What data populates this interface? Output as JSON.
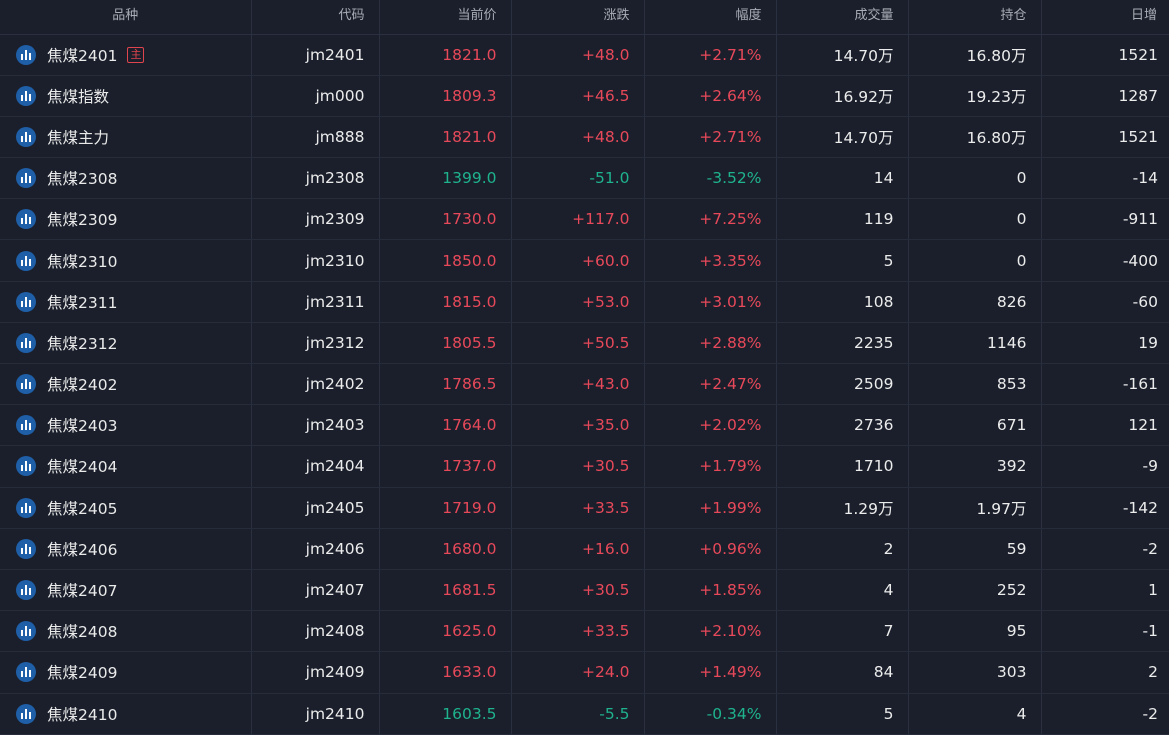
{
  "headers": [
    "品种",
    "代码",
    "当前价",
    "涨跌",
    "幅度",
    "成交量",
    "持仓",
    "日增"
  ],
  "main_badge": "主",
  "icon": "bar-chart-icon",
  "colors": {
    "up": "#e8495a",
    "down": "#1fb38d",
    "icon_bg": "#1f5fa8",
    "background": "#1a1f2b"
  },
  "rows": [
    {
      "name": "焦煤2401",
      "code": "jm2401",
      "price": "1821.0",
      "change": "+48.0",
      "pct": "+2.71%",
      "volume": "14.70万",
      "oi": "16.80万",
      "daily": "1521",
      "dir": "up",
      "main": true
    },
    {
      "name": "焦煤指数",
      "code": "jm000",
      "price": "1809.3",
      "change": "+46.5",
      "pct": "+2.64%",
      "volume": "16.92万",
      "oi": "19.23万",
      "daily": "1287",
      "dir": "up",
      "main": false
    },
    {
      "name": "焦煤主力",
      "code": "jm888",
      "price": "1821.0",
      "change": "+48.0",
      "pct": "+2.71%",
      "volume": "14.70万",
      "oi": "16.80万",
      "daily": "1521",
      "dir": "up",
      "main": false
    },
    {
      "name": "焦煤2308",
      "code": "jm2308",
      "price": "1399.0",
      "change": "-51.0",
      "pct": "-3.52%",
      "volume": "14",
      "oi": "0",
      "daily": "-14",
      "dir": "down",
      "main": false
    },
    {
      "name": "焦煤2309",
      "code": "jm2309",
      "price": "1730.0",
      "change": "+117.0",
      "pct": "+7.25%",
      "volume": "119",
      "oi": "0",
      "daily": "-911",
      "dir": "up",
      "main": false
    },
    {
      "name": "焦煤2310",
      "code": "jm2310",
      "price": "1850.0",
      "change": "+60.0",
      "pct": "+3.35%",
      "volume": "5",
      "oi": "0",
      "daily": "-400",
      "dir": "up",
      "main": false
    },
    {
      "name": "焦煤2311",
      "code": "jm2311",
      "price": "1815.0",
      "change": "+53.0",
      "pct": "+3.01%",
      "volume": "108",
      "oi": "826",
      "daily": "-60",
      "dir": "up",
      "main": false
    },
    {
      "name": "焦煤2312",
      "code": "jm2312",
      "price": "1805.5",
      "change": "+50.5",
      "pct": "+2.88%",
      "volume": "2235",
      "oi": "1146",
      "daily": "19",
      "dir": "up",
      "main": false
    },
    {
      "name": "焦煤2402",
      "code": "jm2402",
      "price": "1786.5",
      "change": "+43.0",
      "pct": "+2.47%",
      "volume": "2509",
      "oi": "853",
      "daily": "-161",
      "dir": "up",
      "main": false
    },
    {
      "name": "焦煤2403",
      "code": "jm2403",
      "price": "1764.0",
      "change": "+35.0",
      "pct": "+2.02%",
      "volume": "2736",
      "oi": "671",
      "daily": "121",
      "dir": "up",
      "main": false
    },
    {
      "name": "焦煤2404",
      "code": "jm2404",
      "price": "1737.0",
      "change": "+30.5",
      "pct": "+1.79%",
      "volume": "1710",
      "oi": "392",
      "daily": "-9",
      "dir": "up",
      "main": false
    },
    {
      "name": "焦煤2405",
      "code": "jm2405",
      "price": "1719.0",
      "change": "+33.5",
      "pct": "+1.99%",
      "volume": "1.29万",
      "oi": "1.97万",
      "daily": "-142",
      "dir": "up",
      "main": false
    },
    {
      "name": "焦煤2406",
      "code": "jm2406",
      "price": "1680.0",
      "change": "+16.0",
      "pct": "+0.96%",
      "volume": "2",
      "oi": "59",
      "daily": "-2",
      "dir": "up",
      "main": false
    },
    {
      "name": "焦煤2407",
      "code": "jm2407",
      "price": "1681.5",
      "change": "+30.5",
      "pct": "+1.85%",
      "volume": "4",
      "oi": "252",
      "daily": "1",
      "dir": "up",
      "main": false
    },
    {
      "name": "焦煤2408",
      "code": "jm2408",
      "price": "1625.0",
      "change": "+33.5",
      "pct": "+2.10%",
      "volume": "7",
      "oi": "95",
      "daily": "-1",
      "dir": "up",
      "main": false
    },
    {
      "name": "焦煤2409",
      "code": "jm2409",
      "price": "1633.0",
      "change": "+24.0",
      "pct": "+1.49%",
      "volume": "84",
      "oi": "303",
      "daily": "2",
      "dir": "up",
      "main": false
    },
    {
      "name": "焦煤2410",
      "code": "jm2410",
      "price": "1603.5",
      "change": "-5.5",
      "pct": "-0.34%",
      "volume": "5",
      "oi": "4",
      "daily": "-2",
      "dir": "down",
      "main": false
    }
  ]
}
